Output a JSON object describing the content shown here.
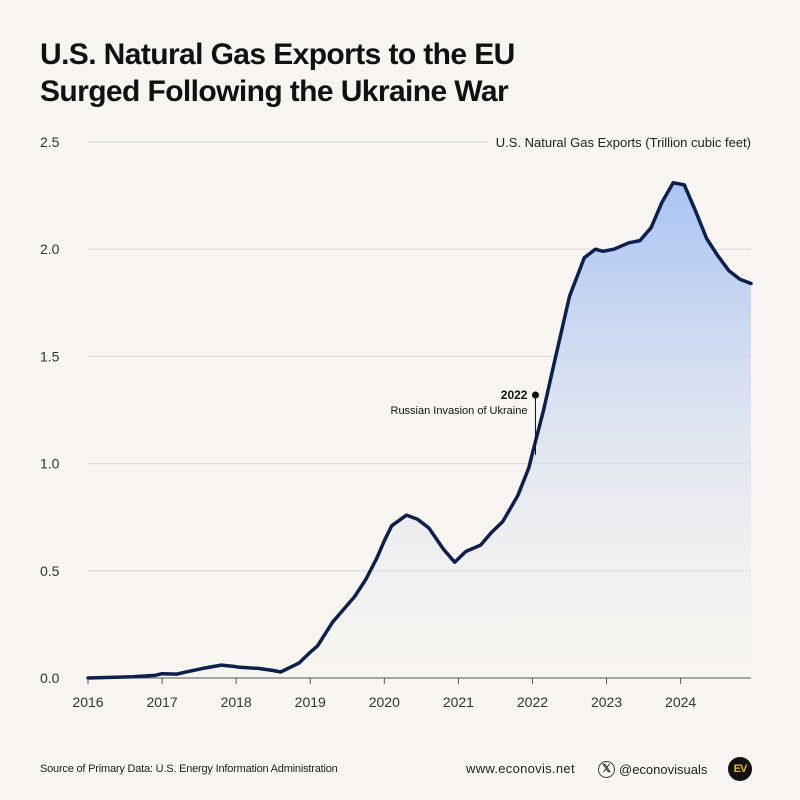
{
  "title": {
    "line1": "U.S. Natural Gas Exports to the EU",
    "line2": "Surged Following the Ukraine War"
  },
  "chart_data": {
    "type": "area",
    "series": [
      {
        "name": "U.S. Natural Gas Exports (Trillion cubic feet)",
        "x": [
          2016.0,
          2016.3,
          2016.6,
          2016.9,
          2017.0,
          2017.2,
          2017.35,
          2017.55,
          2017.8,
          2017.95,
          2018.05,
          2018.3,
          2018.5,
          2018.6,
          2018.7,
          2018.85,
          2019.0,
          2019.1,
          2019.3,
          2019.45,
          2019.6,
          2019.75,
          2019.9,
          2020.0,
          2020.1,
          2020.3,
          2020.45,
          2020.6,
          2020.8,
          2020.95,
          2021.1,
          2021.3,
          2021.45,
          2021.6,
          2021.8,
          2021.95,
          2022.0,
          2022.15,
          2022.3,
          2022.5,
          2022.7,
          2022.85,
          2022.95,
          2023.1,
          2023.3,
          2023.45,
          2023.6,
          2023.75,
          2023.9,
          2024.05,
          2024.2,
          2024.35,
          2024.5,
          2024.65,
          2024.8,
          2024.95
        ],
        "y": [
          0.0,
          0.003,
          0.006,
          0.012,
          0.02,
          0.018,
          0.03,
          0.045,
          0.06,
          0.055,
          0.05,
          0.045,
          0.035,
          0.028,
          0.045,
          0.07,
          0.12,
          0.15,
          0.26,
          0.32,
          0.38,
          0.46,
          0.56,
          0.64,
          0.71,
          0.76,
          0.74,
          0.7,
          0.6,
          0.54,
          0.59,
          0.62,
          0.68,
          0.73,
          0.85,
          0.98,
          1.05,
          1.25,
          1.48,
          1.78,
          1.96,
          2.0,
          1.99,
          2.0,
          2.03,
          2.04,
          2.1,
          2.22,
          2.31,
          2.3,
          2.18,
          2.05,
          1.97,
          1.9,
          1.86,
          1.84
        ]
      }
    ],
    "xlim": [
      2016,
      2024.95
    ],
    "ylim": [
      0,
      2.5
    ],
    "xticks": [
      "2016",
      "2017",
      "2018",
      "2019",
      "2020",
      "2021",
      "2022",
      "2023",
      "2024"
    ],
    "yticks": [
      "0.0",
      "0.5",
      "1.0",
      "1.5",
      "2.0",
      "2.5"
    ],
    "grid": true,
    "annotation": {
      "x": 2022.0,
      "y": 1.32,
      "label_year": "2022",
      "label_text": "Russian Invasion of Ukraine"
    }
  },
  "colors": {
    "line": "#0c1f4d",
    "fill_top": "#a9c3f2",
    "fill_bottom": "#f8f5f0",
    "grid": "#d9d6d1",
    "background": "#f8f5f0"
  },
  "footer": {
    "source": "Source of Primary Data: U.S. Energy Information Administration",
    "website": "www.econovis.net",
    "social_icon": "x-logo-icon",
    "social_handle": "@econovisuals",
    "logo_text": "EV"
  }
}
